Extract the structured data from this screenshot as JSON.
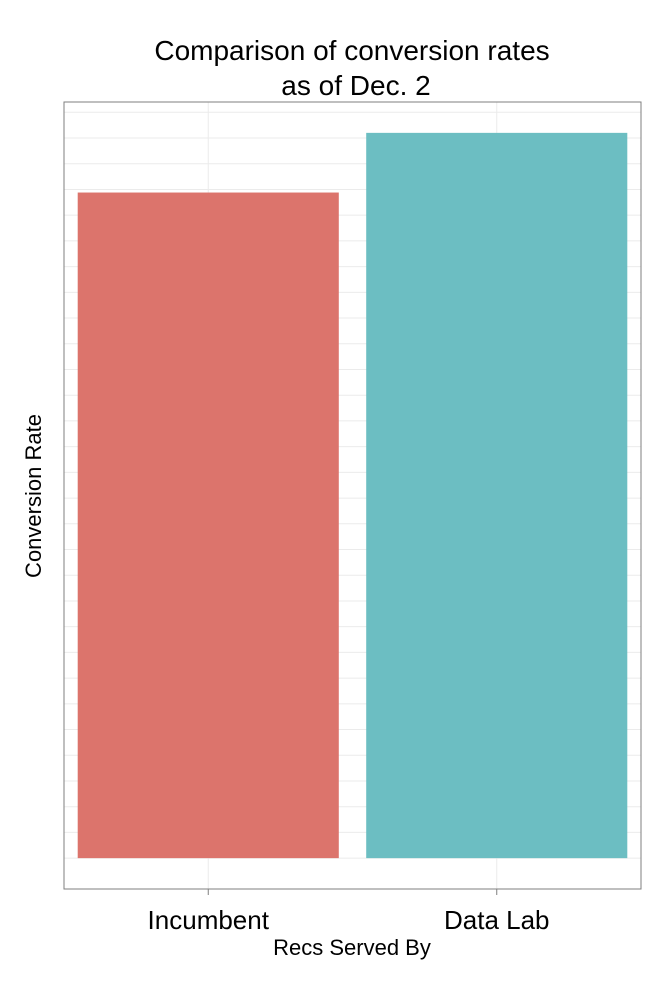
{
  "chart_data": {
    "type": "bar",
    "title_lines": [
      "Comparison of conversion rates",
      "as of Dec. 2"
    ],
    "xlabel": "Recs Served By",
    "ylabel": "Conversion Rate",
    "categories": [
      "Incumbent",
      "Data Lab"
    ],
    "values": [
      0.647,
      0.705
    ],
    "ylim": [
      -0.03,
      0.735
    ],
    "y_axis_ticks_shown": false,
    "grid": true,
    "legend": "none",
    "colors": [
      "#dc746c",
      "#6cbec2"
    ],
    "panel_border_color": "#7f7f7f",
    "grid_color": "#ebebeb"
  }
}
